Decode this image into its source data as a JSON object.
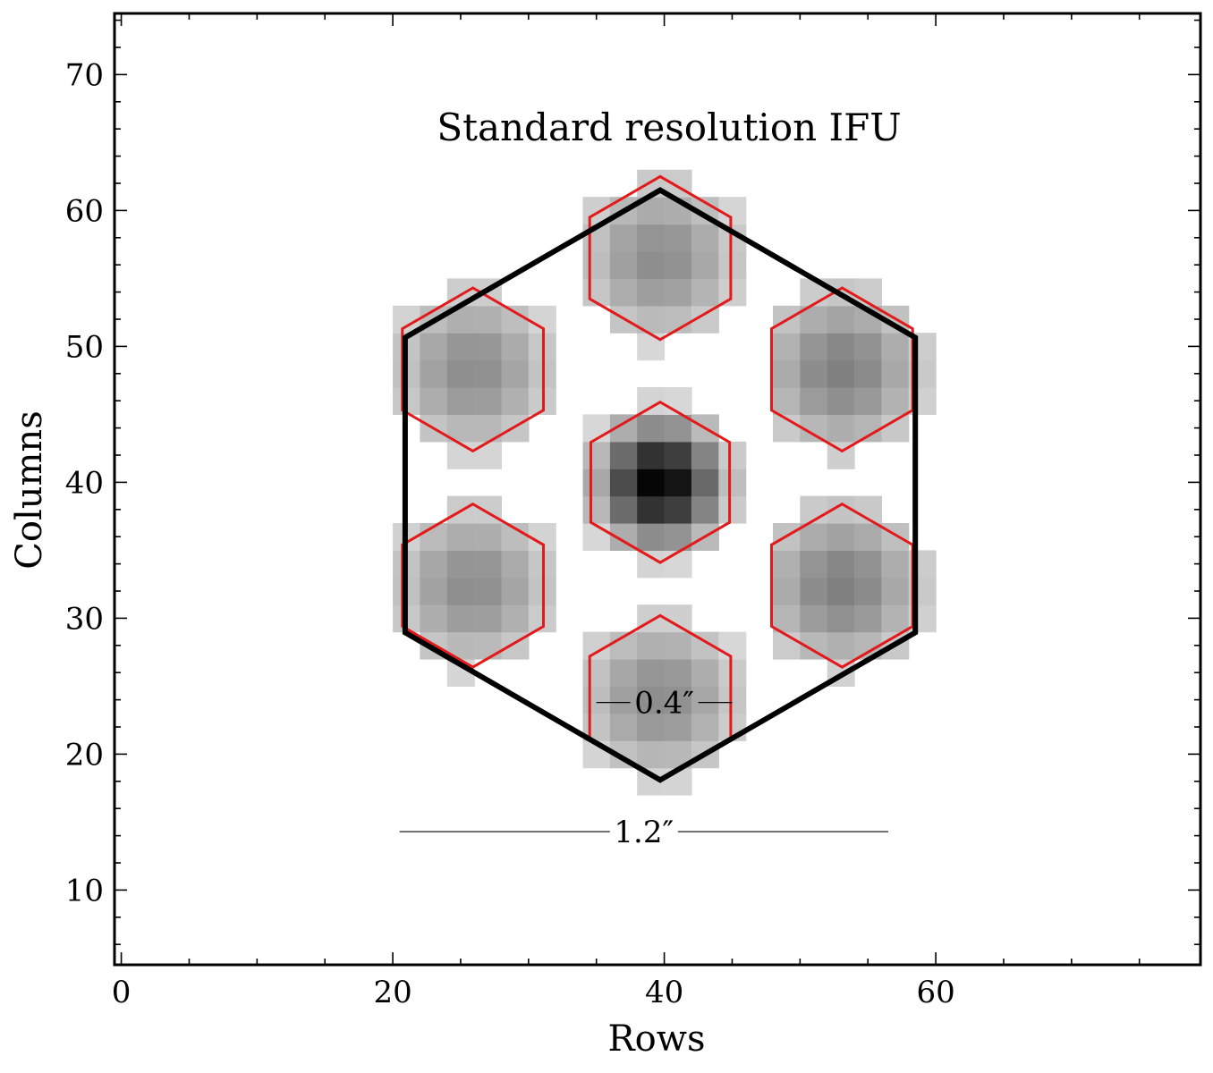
{
  "chart_data": {
    "type": "heatmap",
    "title": "Standard resolution IFU",
    "xlabel": "Rows",
    "ylabel": "Columns",
    "xlim": [
      -0.5,
      79.5
    ],
    "ylim": [
      4.5,
      74.5
    ],
    "x_ticks": [
      {
        "value": 0,
        "label": "0"
      },
      {
        "value": 20,
        "label": "20"
      },
      {
        "value": 40,
        "label": "40"
      },
      {
        "value": 60,
        "label": "60"
      }
    ],
    "y_ticks": [
      {
        "value": 10,
        "label": "10"
      },
      {
        "value": 20,
        "label": "20"
      },
      {
        "value": 30,
        "label": "30"
      },
      {
        "value": 40,
        "label": "40"
      },
      {
        "value": 50,
        "label": "50"
      },
      {
        "value": 60,
        "label": "60"
      },
      {
        "value": 70,
        "label": "70"
      }
    ],
    "x_minor_step": 5,
    "y_minor_step": 2,
    "colormap": "Greys",
    "outer_hexagon": {
      "center": [
        39.7,
        39.8
      ],
      "radius": 21.7,
      "color": "#000000"
    },
    "lenslets": [
      {
        "name": "center",
        "center": [
          39.7,
          40.0
        ],
        "radius": 5.9,
        "peak": 1.0,
        "sigma": 3.2
      },
      {
        "name": "top",
        "center": [
          39.7,
          56.5
        ],
        "radius": 6.0,
        "peak": 0.45,
        "sigma": 4.5
      },
      {
        "name": "bottom",
        "center": [
          39.7,
          24.2
        ],
        "radius": 6.0,
        "peak": 0.45,
        "sigma": 4.5
      },
      {
        "name": "upper-left",
        "center": [
          25.9,
          48.3
        ],
        "radius": 6.0,
        "peak": 0.45,
        "sigma": 4.5
      },
      {
        "name": "upper-right",
        "center": [
          53.1,
          48.3
        ],
        "radius": 6.0,
        "peak": 0.5,
        "sigma": 4.5
      },
      {
        "name": "lower-left",
        "center": [
          25.9,
          32.4
        ],
        "radius": 6.0,
        "peak": 0.45,
        "sigma": 4.5
      },
      {
        "name": "lower-right",
        "center": [
          53.1,
          32.4
        ],
        "radius": 6.0,
        "peak": 0.5,
        "sigma": 4.5
      }
    ],
    "lenslet_outline_color": "#e31a1c",
    "scale_bars": [
      {
        "label": "0.4″",
        "x_start": 35.0,
        "x_end": 45.0,
        "y": 23.8
      },
      {
        "label": "1.2″",
        "x_start": 20.5,
        "x_end": 56.5,
        "y": 14.3
      }
    ]
  }
}
